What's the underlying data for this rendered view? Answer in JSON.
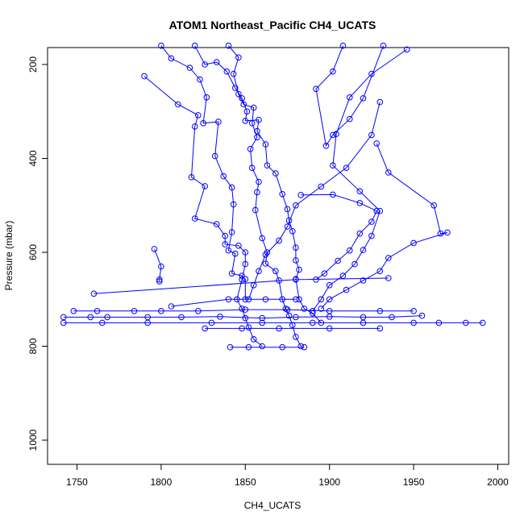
{
  "chart_data": {
    "type": "line",
    "title": "ATOM1 Northeast_Pacific CH4_UCATS",
    "xlabel": "CH4_UCATS",
    "ylabel": "Pressure (mbar)",
    "xlim": [
      1735,
      2000
    ],
    "ylim": [
      1050,
      160
    ],
    "y_reversed": true,
    "grid": false,
    "legend": "none",
    "x_ticks": [
      {
        "value": 1750,
        "label": "1750"
      },
      {
        "value": 1800,
        "label": "1800"
      },
      {
        "value": 1850,
        "label": "1850"
      },
      {
        "value": 1900,
        "label": "1900"
      },
      {
        "value": 1950,
        "label": "1950"
      },
      {
        "value": 2000,
        "label": "2000"
      }
    ],
    "y_ticks": [
      {
        "value": 200,
        "label": "200"
      },
      {
        "value": 400,
        "label": "400"
      },
      {
        "value": 600,
        "label": "600"
      },
      {
        "value": 800,
        "label": "800"
      },
      {
        "value": 1000,
        "label": "1000"
      }
    ],
    "series": [
      {
        "color": "#0000ff",
        "points": [
          [
            1800,
            160
          ],
          [
            1806,
            187
          ],
          [
            1817,
            207
          ],
          [
            1823,
            232
          ],
          [
            1827,
            270
          ],
          [
            1825,
            325
          ],
          [
            1834,
            322
          ],
          [
            1832,
            395
          ],
          [
            1837,
            438
          ],
          [
            1842,
            462
          ],
          [
            1843,
            498
          ],
          [
            1842,
            557
          ],
          [
            1840,
            596
          ],
          [
            1844,
            603
          ],
          [
            1842,
            645
          ],
          [
            1848,
            650
          ],
          [
            1850,
            657
          ],
          [
            1850,
            700
          ]
        ]
      },
      {
        "color": "#0000ff",
        "points": [
          [
            1820,
            160
          ],
          [
            1826,
            200
          ],
          [
            1833,
            195
          ],
          [
            1839,
            215
          ],
          [
            1844,
            250
          ],
          [
            1848,
            272
          ],
          [
            1851,
            300
          ],
          [
            1850,
            320
          ],
          [
            1858,
            318
          ],
          [
            1857,
            342
          ],
          [
            1862,
            370
          ],
          [
            1863,
            415
          ],
          [
            1868,
            432
          ],
          [
            1872,
            476
          ],
          [
            1875,
            508
          ],
          [
            1876,
            532
          ],
          [
            1878,
            555
          ],
          [
            1880,
            590
          ],
          [
            1880,
            617
          ],
          [
            1882,
            637
          ],
          [
            1880,
            657
          ],
          [
            1882,
            700
          ],
          [
            1885,
            720
          ],
          [
            1890,
            730
          ],
          [
            1895,
            750
          ]
        ]
      },
      {
        "color": "#0000ff",
        "points": [
          [
            1790,
            225
          ],
          [
            1810,
            285
          ],
          [
            1822,
            308
          ],
          [
            1820,
            332
          ],
          [
            1818,
            440
          ],
          [
            1826,
            459
          ],
          [
            1820,
            528
          ],
          [
            1833,
            540
          ],
          [
            1838,
            565
          ],
          [
            1838,
            583
          ],
          [
            1846,
            586
          ],
          [
            1850,
            600
          ],
          [
            1850,
            625
          ],
          [
            1848,
            658
          ],
          [
            1845,
            700
          ],
          [
            1848,
            720
          ],
          [
            1850,
            740
          ],
          [
            1852,
            760
          ],
          [
            1855,
            785
          ],
          [
            1860,
            800
          ]
        ]
      },
      {
        "color": "#0000ff",
        "points": [
          [
            1840,
            160
          ],
          [
            1846,
            185
          ],
          [
            1843,
            220
          ],
          [
            1846,
            263
          ],
          [
            1849,
            285
          ],
          [
            1855,
            292
          ],
          [
            1854,
            325
          ],
          [
            1857,
            355
          ],
          [
            1853,
            380
          ],
          [
            1854,
            420
          ],
          [
            1858,
            450
          ],
          [
            1857,
            472
          ],
          [
            1856,
            510
          ],
          [
            1860,
            570
          ],
          [
            1863,
            600
          ],
          [
            1862,
            624
          ],
          [
            1868,
            640
          ],
          [
            1870,
            660
          ],
          [
            1872,
            700
          ],
          [
            1874,
            720
          ],
          [
            1876,
            735
          ],
          [
            1878,
            755
          ],
          [
            1880,
            780
          ],
          [
            1883,
            800
          ]
        ]
      },
      {
        "color": "#0000ff",
        "points": [
          [
            1908,
            160
          ],
          [
            1902,
            215
          ],
          [
            1892,
            252
          ],
          [
            1898,
            373
          ],
          [
            1902,
            350
          ],
          [
            1912,
            316
          ],
          [
            1920,
            272
          ],
          [
            1932,
            160
          ]
        ]
      },
      {
        "color": "#0000ff",
        "points": [
          [
            1946,
            168
          ],
          [
            1925,
            220
          ],
          [
            1912,
            270
          ],
          [
            1904,
            348
          ],
          [
            1902,
            415
          ],
          [
            1918,
            470
          ],
          [
            1930,
            512
          ],
          [
            1925,
            565
          ],
          [
            1920,
            595
          ],
          [
            1915,
            625
          ],
          [
            1908,
            650
          ],
          [
            1900,
            670
          ],
          [
            1895,
            700
          ],
          [
            1890,
            725
          ]
        ]
      },
      {
        "color": "#0000ff",
        "points": [
          [
            1930,
            280
          ],
          [
            1925,
            350
          ],
          [
            1910,
            420
          ],
          [
            1895,
            460
          ],
          [
            1880,
            500
          ],
          [
            1875,
            545
          ],
          [
            1870,
            575
          ],
          [
            1862,
            605
          ],
          [
            1858,
            640
          ],
          [
            1855,
            670
          ],
          [
            1852,
            700
          ]
        ]
      },
      {
        "color": "#0000ff",
        "points": [
          [
            1928,
            368
          ],
          [
            1935,
            430
          ],
          [
            1962,
            500
          ],
          [
            1966,
            560
          ],
          [
            1970,
            558
          ],
          [
            1950,
            580
          ],
          [
            1935,
            612
          ],
          [
            1930,
            640
          ],
          [
            1920,
            660
          ],
          [
            1910,
            680
          ],
          [
            1900,
            700
          ],
          [
            1895,
            720
          ]
        ]
      },
      {
        "color": "#0000ff",
        "points": [
          [
            1796,
            593
          ],
          [
            1800,
            630
          ],
          [
            1799,
            658
          ],
          [
            1799,
            662
          ]
        ]
      },
      {
        "color": "#0000ff",
        "points": [
          [
            1760,
            688
          ],
          [
            1880,
            658
          ],
          [
            1935,
            655
          ]
        ]
      },
      {
        "color": "#0000ff",
        "points": [
          [
            1883,
            478
          ],
          [
            1902,
            477
          ],
          [
            1918,
            495
          ],
          [
            1928,
            512
          ],
          [
            1925,
            535
          ],
          [
            1918,
            560
          ],
          [
            1912,
            596
          ],
          [
            1905,
            618
          ],
          [
            1897,
            645
          ],
          [
            1892,
            658
          ]
        ]
      },
      {
        "color": "#0000ff",
        "points": [
          [
            1806,
            715
          ],
          [
            1840,
            700
          ],
          [
            1862,
            700
          ],
          [
            1880,
            700
          ]
        ]
      },
      {
        "color": "#0000ff",
        "points": [
          [
            1748,
            725
          ],
          [
            1762,
            725
          ],
          [
            1784,
            725
          ],
          [
            1800,
            725
          ],
          [
            1822,
            725
          ],
          [
            1850,
            722
          ],
          [
            1875,
            722
          ],
          [
            1900,
            725
          ],
          [
            1930,
            725
          ],
          [
            1950,
            725
          ]
        ]
      },
      {
        "color": "#0000ff",
        "points": [
          [
            1742,
            738
          ],
          [
            1758,
            738
          ],
          [
            1768,
            738
          ],
          [
            1792,
            738
          ],
          [
            1812,
            738
          ],
          [
            1835,
            737
          ],
          [
            1860,
            740
          ],
          [
            1880,
            738
          ],
          [
            1900,
            737
          ],
          [
            1920,
            738
          ],
          [
            1937,
            738
          ],
          [
            1955,
            735
          ]
        ]
      },
      {
        "color": "#0000ff",
        "points": [
          [
            1742,
            750
          ],
          [
            1765,
            750
          ],
          [
            1792,
            750
          ],
          [
            1830,
            750
          ],
          [
            1860,
            750
          ],
          [
            1890,
            750
          ],
          [
            1920,
            750
          ],
          [
            1950,
            750
          ],
          [
            1965,
            750
          ],
          [
            1981,
            750
          ],
          [
            1991,
            750
          ]
        ]
      },
      {
        "color": "#0000ff",
        "points": [
          [
            1826,
            762
          ],
          [
            1848,
            762
          ],
          [
            1870,
            762
          ],
          [
            1900,
            762
          ],
          [
            1930,
            762
          ]
        ]
      },
      {
        "color": "#0000ff",
        "points": [
          [
            1841,
            802
          ],
          [
            1852,
            802
          ],
          [
            1872,
            802
          ],
          [
            1885,
            802
          ]
        ]
      }
    ]
  }
}
